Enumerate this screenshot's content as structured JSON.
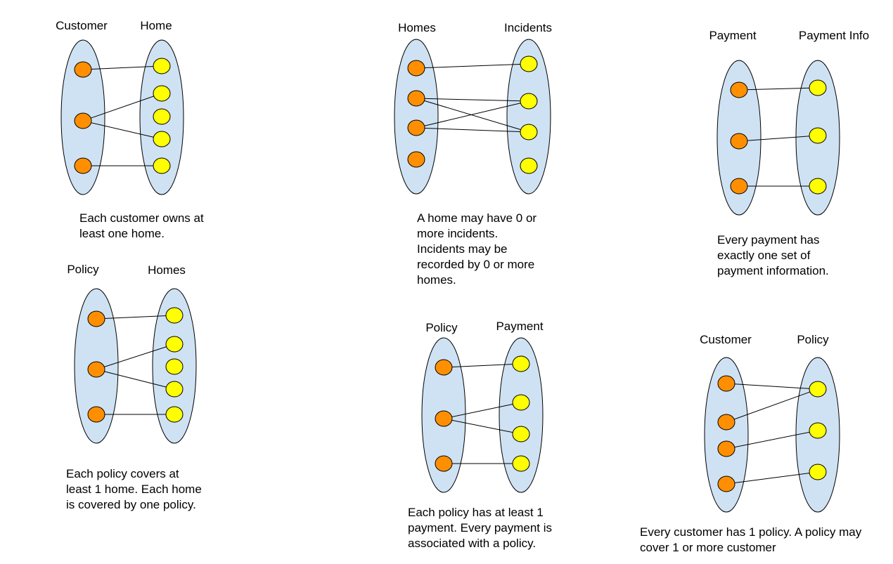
{
  "colors": {
    "background": "#ffffff",
    "ellipse_fill": "#cfe2f3",
    "left_node_fill": "#ff8f00",
    "right_node_fill": "#ffff00",
    "stroke": "#000000"
  },
  "diagrams": [
    {
      "id": "customer-home",
      "left_label": "Customer",
      "right_label": "Home",
      "caption_lines": [
        "Each customer owns at",
        "least one home."
      ],
      "left_count": 3,
      "right_count": 5,
      "edges": [
        [
          0,
          0
        ],
        [
          1,
          1
        ],
        [
          1,
          3
        ],
        [
          2,
          4
        ]
      ]
    },
    {
      "id": "homes-incidents",
      "left_label": "Homes",
      "right_label": "Incidents",
      "caption_lines": [
        "A home may have 0 or",
        "more incidents.",
        "Incidents may be",
        "recorded by 0 or more",
        "homes."
      ],
      "left_count": 4,
      "right_count": 4,
      "edges": [
        [
          0,
          0
        ],
        [
          1,
          1
        ],
        [
          1,
          2
        ],
        [
          2,
          1
        ],
        [
          2,
          2
        ]
      ]
    },
    {
      "id": "payment-paymentinfo",
      "left_label": "Payment",
      "right_label": "Payment Info",
      "caption_lines": [
        "Every payment has",
        "exactly one set of",
        "payment information."
      ],
      "left_count": 3,
      "right_count": 3,
      "edges": [
        [
          0,
          0
        ],
        [
          1,
          1
        ],
        [
          2,
          2
        ]
      ]
    },
    {
      "id": "policy-homes",
      "left_label": "Policy",
      "right_label": "Homes",
      "caption_lines": [
        "Each policy covers at",
        "least 1 home. Each home",
        "is covered by one policy."
      ],
      "left_count": 3,
      "right_count": 5,
      "edges": [
        [
          0,
          0
        ],
        [
          1,
          1
        ],
        [
          1,
          3
        ],
        [
          2,
          4
        ]
      ]
    },
    {
      "id": "policy-payment",
      "left_label": "Policy",
      "right_label": "Payment",
      "caption_lines": [
        "Each policy has at least 1",
        "payment. Every payment is",
        "associated with a policy."
      ],
      "left_count": 3,
      "right_count": 4,
      "edges": [
        [
          0,
          0
        ],
        [
          1,
          1
        ],
        [
          1,
          2
        ],
        [
          2,
          3
        ]
      ]
    },
    {
      "id": "customer-policy",
      "left_label": "Customer",
      "right_label": "Policy",
      "caption_lines": [
        "Every customer has 1 policy. A policy may",
        "cover 1 or more customer"
      ],
      "left_count": 4,
      "right_count": 3,
      "edges": [
        [
          0,
          0
        ],
        [
          1,
          0
        ],
        [
          2,
          1
        ],
        [
          3,
          2
        ]
      ]
    }
  ]
}
